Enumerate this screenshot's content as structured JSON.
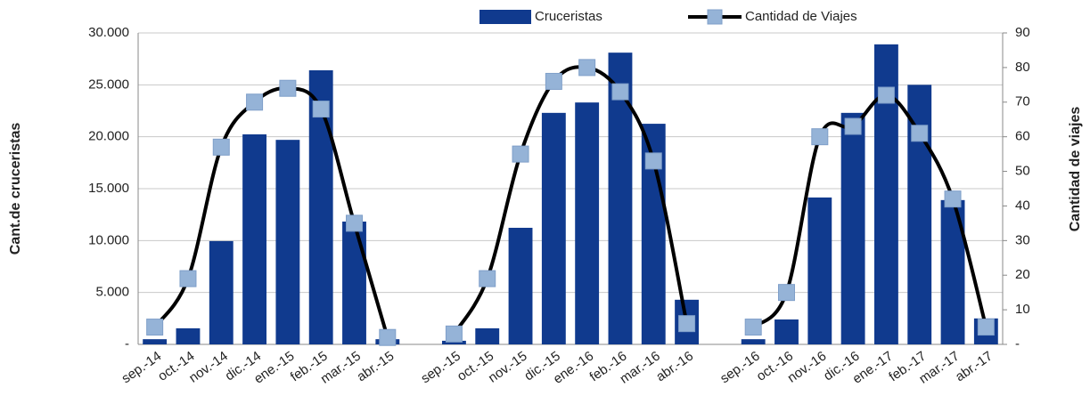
{
  "chart_data": {
    "type": "bar-line",
    "categories": [
      "sep.-14",
      "oct.-14",
      "nov.-14",
      "dic.-14",
      "ene.-15",
      "feb.-15",
      "mar.-15",
      "abr.-15",
      null,
      "sep.-15",
      "oct.-15",
      "nov.-15",
      "dic.-15",
      "ene.-16",
      "feb.-16",
      "mar.-16",
      "abr.-16",
      null,
      "sep.-16",
      "oct.-16",
      "nov.-16",
      "dic.-16",
      "ene.-17",
      "feb.-17",
      "mar.-17",
      "abr.-17"
    ],
    "series": [
      {
        "name": "Cruceristas",
        "type": "bar",
        "color": "#103a8e",
        "values": [
          500,
          1550,
          9950,
          20230,
          19700,
          26400,
          11830,
          500,
          null,
          350,
          1550,
          11230,
          22300,
          23300,
          28100,
          21250,
          4300,
          null,
          500,
          2400,
          14150,
          22300,
          28900,
          25000,
          13900,
          2500
        ]
      },
      {
        "name": "Cantidad de Viajes",
        "type": "line",
        "axis": "y2",
        "color": "#000000",
        "marker_color": "#95b3d7",
        "smooth": true,
        "values": [
          5,
          19,
          57,
          70,
          74,
          68,
          35,
          2,
          null,
          3,
          19,
          55,
          76,
          80,
          73,
          53,
          6,
          null,
          5,
          15,
          60,
          63,
          72,
          61,
          42,
          5
        ]
      }
    ],
    "ylabel": "Cant.de cruceristas",
    "y2label": "Cantidad de viajes",
    "ylim": [
      0,
      30000
    ],
    "yticks": [
      {
        "value": 0,
        "label": "-"
      },
      {
        "value": 5000,
        "label": "5.000"
      },
      {
        "value": 10000,
        "label": "10.000"
      },
      {
        "value": 15000,
        "label": "15.000"
      },
      {
        "value": 20000,
        "label": "20.000"
      },
      {
        "value": 25000,
        "label": "25.000"
      },
      {
        "value": 30000,
        "label": "30.000"
      }
    ],
    "y2lim": [
      0,
      90
    ],
    "y2ticks": [
      {
        "value": 0,
        "label": "-"
      },
      10,
      20,
      30,
      40,
      50,
      60,
      70,
      80,
      90
    ],
    "grid": true,
    "legend": "top"
  }
}
